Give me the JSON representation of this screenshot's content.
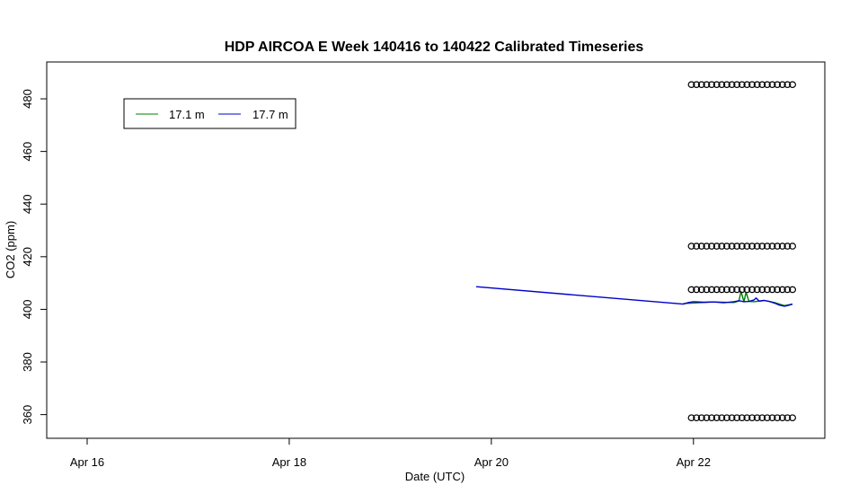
{
  "chart_data": {
    "type": "line",
    "title": "HDP AIRCOA E  Week 140416 to 140422  Calibrated Timeseries",
    "xlabel": "Date (UTC)",
    "ylabel": "CO2 (ppm)",
    "x_ticks": [
      "Apr 16",
      "Apr 18",
      "Apr 20",
      "Apr 22"
    ],
    "x_tick_values": [
      16,
      18,
      20,
      22
    ],
    "y_ticks": [
      "360",
      "380",
      "400",
      "420",
      "440",
      "460",
      "480"
    ],
    "y_tick_values": [
      360,
      380,
      400,
      420,
      440,
      460,
      480
    ],
    "xlim": [
      15.6,
      23.3
    ],
    "ylim": [
      351,
      494
    ],
    "grid": false,
    "legend_position": "top-left",
    "series": [
      {
        "name": "17.1 m",
        "color": "#008000",
        "x": [
          21.9,
          22.2,
          22.4,
          22.45,
          22.47,
          22.5,
          22.52,
          22.55,
          22.6,
          22.7,
          22.8,
          22.9,
          22.98
        ],
        "y": [
          402.2,
          402.8,
          402.6,
          403.2,
          406.8,
          402.9,
          406.5,
          403.0,
          402.9,
          403.4,
          402.6,
          401.4,
          402.0
        ]
      },
      {
        "name": "17.7 m",
        "color": "#0000cc",
        "x": [
          19.85,
          21.9,
          21.95,
          22.0,
          22.1,
          22.2,
          22.3,
          22.4,
          22.45,
          22.5,
          22.55,
          22.6,
          22.62,
          22.65,
          22.7,
          22.75,
          22.8,
          22.85,
          22.9,
          22.95,
          22.98
        ],
        "y": [
          408.6,
          402.0,
          402.6,
          402.9,
          402.7,
          402.8,
          402.5,
          402.9,
          403.3,
          402.9,
          403.0,
          403.6,
          404.3,
          403.1,
          403.4,
          403.0,
          402.4,
          401.6,
          401.2,
          401.6,
          402.0
        ]
      },
      {
        "name": "",
        "marker": "circle",
        "color": "#000000",
        "x": [
          21.98,
          22.03,
          22.08,
          22.13,
          22.18,
          22.23,
          22.28,
          22.33,
          22.38,
          22.43,
          22.48,
          22.53,
          22.58,
          22.63,
          22.68,
          22.73,
          22.78,
          22.83,
          22.88,
          22.93,
          22.98
        ],
        "y": [
          485.4,
          485.4,
          485.4,
          485.4,
          485.4,
          485.4,
          485.4,
          485.4,
          485.4,
          485.4,
          485.4,
          485.4,
          485.4,
          485.4,
          485.4,
          485.4,
          485.4,
          485.4,
          485.4,
          485.4,
          485.4
        ]
      },
      {
        "name": "",
        "marker": "circle",
        "color": "#000000",
        "x": [
          21.98,
          22.03,
          22.08,
          22.13,
          22.18,
          22.23,
          22.28,
          22.33,
          22.38,
          22.43,
          22.48,
          22.53,
          22.58,
          22.63,
          22.68,
          22.73,
          22.78,
          22.83,
          22.88,
          22.93,
          22.98
        ],
        "y": [
          424.0,
          424.0,
          424.0,
          424.0,
          424.0,
          424.0,
          424.0,
          424.0,
          424.0,
          424.0,
          424.0,
          424.0,
          424.0,
          424.0,
          424.0,
          424.0,
          424.0,
          424.0,
          424.0,
          424.0,
          424.0
        ]
      },
      {
        "name": "",
        "marker": "circle",
        "color": "#000000",
        "x": [
          21.98,
          22.03,
          22.08,
          22.13,
          22.18,
          22.23,
          22.28,
          22.33,
          22.38,
          22.43,
          22.48,
          22.53,
          22.58,
          22.63,
          22.68,
          22.73,
          22.78,
          22.83,
          22.88,
          22.93,
          22.98
        ],
        "y": [
          407.5,
          407.5,
          407.5,
          407.5,
          407.5,
          407.5,
          407.5,
          407.5,
          407.5,
          407.5,
          407.5,
          407.5,
          407.5,
          407.5,
          407.5,
          407.5,
          407.5,
          407.5,
          407.5,
          407.5,
          407.5
        ]
      },
      {
        "name": "",
        "marker": "circle",
        "color": "#000000",
        "x": [
          21.98,
          22.03,
          22.08,
          22.13,
          22.18,
          22.23,
          22.28,
          22.33,
          22.38,
          22.43,
          22.48,
          22.53,
          22.58,
          22.63,
          22.68,
          22.73,
          22.78,
          22.83,
          22.88,
          22.93,
          22.98
        ],
        "y": [
          358.8,
          358.8,
          358.8,
          358.8,
          358.8,
          358.8,
          358.8,
          358.8,
          358.8,
          358.8,
          358.8,
          358.8,
          358.8,
          358.8,
          358.8,
          358.8,
          358.8,
          358.8,
          358.8,
          358.8,
          358.8
        ]
      }
    ]
  }
}
